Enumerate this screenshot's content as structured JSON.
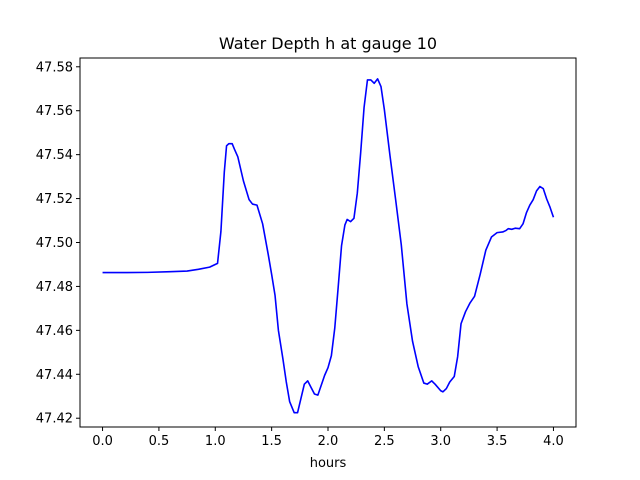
{
  "chart_data": {
    "type": "line",
    "title": "Water Depth h at gauge 10",
    "xlabel": "hours",
    "ylabel": "",
    "xlim": [
      -0.2,
      4.2
    ],
    "ylim": [
      47.416,
      47.584
    ],
    "xticks": [
      0.0,
      0.5,
      1.0,
      1.5,
      2.0,
      2.5,
      3.0,
      3.5,
      4.0
    ],
    "xtick_labels": [
      "0.0",
      "0.5",
      "1.0",
      "1.5",
      "2.0",
      "2.5",
      "3.0",
      "3.5",
      "4.0"
    ],
    "yticks": [
      47.42,
      47.44,
      47.46,
      47.48,
      47.5,
      47.52,
      47.54,
      47.56,
      47.58
    ],
    "ytick_labels": [
      "47.42",
      "47.44",
      "47.46",
      "47.48",
      "47.50",
      "47.52",
      "47.54",
      "47.56",
      "47.58"
    ],
    "grid": false,
    "line_color": "#0000ff",
    "series": [
      {
        "x": [
          0.0,
          0.2,
          0.4,
          0.6,
          0.75,
          0.85,
          0.95,
          1.02,
          1.05,
          1.08,
          1.1,
          1.12,
          1.15,
          1.17,
          1.2,
          1.25,
          1.3,
          1.33,
          1.37,
          1.42,
          1.47,
          1.5,
          1.53,
          1.56,
          1.6,
          1.63,
          1.66,
          1.7,
          1.73,
          1.76,
          1.79,
          1.82,
          1.85,
          1.88,
          1.91,
          1.94,
          1.97,
          2.0,
          2.03,
          2.06,
          2.09,
          2.12,
          2.15,
          2.17,
          2.2,
          2.23,
          2.26,
          2.29,
          2.32,
          2.35,
          2.38,
          2.41,
          2.44,
          2.47,
          2.5,
          2.55,
          2.6,
          2.65,
          2.7,
          2.75,
          2.8,
          2.85,
          2.88,
          2.92,
          2.95,
          3.0,
          3.02,
          3.05,
          3.08,
          3.12,
          3.15,
          3.18,
          3.22,
          3.26,
          3.3,
          3.35,
          3.4,
          3.45,
          3.5,
          3.55,
          3.58,
          3.6,
          3.63,
          3.66,
          3.7,
          3.73,
          3.76,
          3.79,
          3.82,
          3.85,
          3.88,
          3.91,
          3.94,
          3.97,
          4.0
        ],
        "y": [
          47.4863,
          47.4863,
          47.4864,
          47.4867,
          47.487,
          47.4878,
          47.4888,
          47.4905,
          47.505,
          47.532,
          47.544,
          47.545,
          47.545,
          47.5425,
          47.539,
          47.528,
          47.5195,
          47.5175,
          47.517,
          47.5085,
          47.4945,
          47.4855,
          47.476,
          47.46,
          47.447,
          47.4365,
          47.4275,
          47.4225,
          47.4225,
          47.429,
          47.4355,
          47.437,
          47.434,
          47.431,
          47.4305,
          47.435,
          47.4395,
          47.443,
          47.4485,
          47.461,
          47.4795,
          47.4985,
          47.508,
          47.5105,
          47.5095,
          47.511,
          47.5225,
          47.541,
          47.5615,
          47.574,
          47.574,
          47.5725,
          47.5745,
          47.571,
          47.5605,
          47.5395,
          47.5195,
          47.499,
          47.472,
          47.455,
          47.4435,
          47.436,
          47.4355,
          47.437,
          47.4355,
          47.4325,
          47.432,
          47.4335,
          47.4365,
          47.439,
          47.448,
          47.463,
          47.4685,
          47.4725,
          47.4755,
          47.4855,
          47.4965,
          47.5025,
          47.5045,
          47.5048,
          47.5055,
          47.5063,
          47.506,
          47.5065,
          47.5063,
          47.5085,
          47.5135,
          47.517,
          47.5195,
          47.5235,
          47.5255,
          47.5245,
          47.5198,
          47.516,
          47.5115
        ]
      }
    ]
  }
}
